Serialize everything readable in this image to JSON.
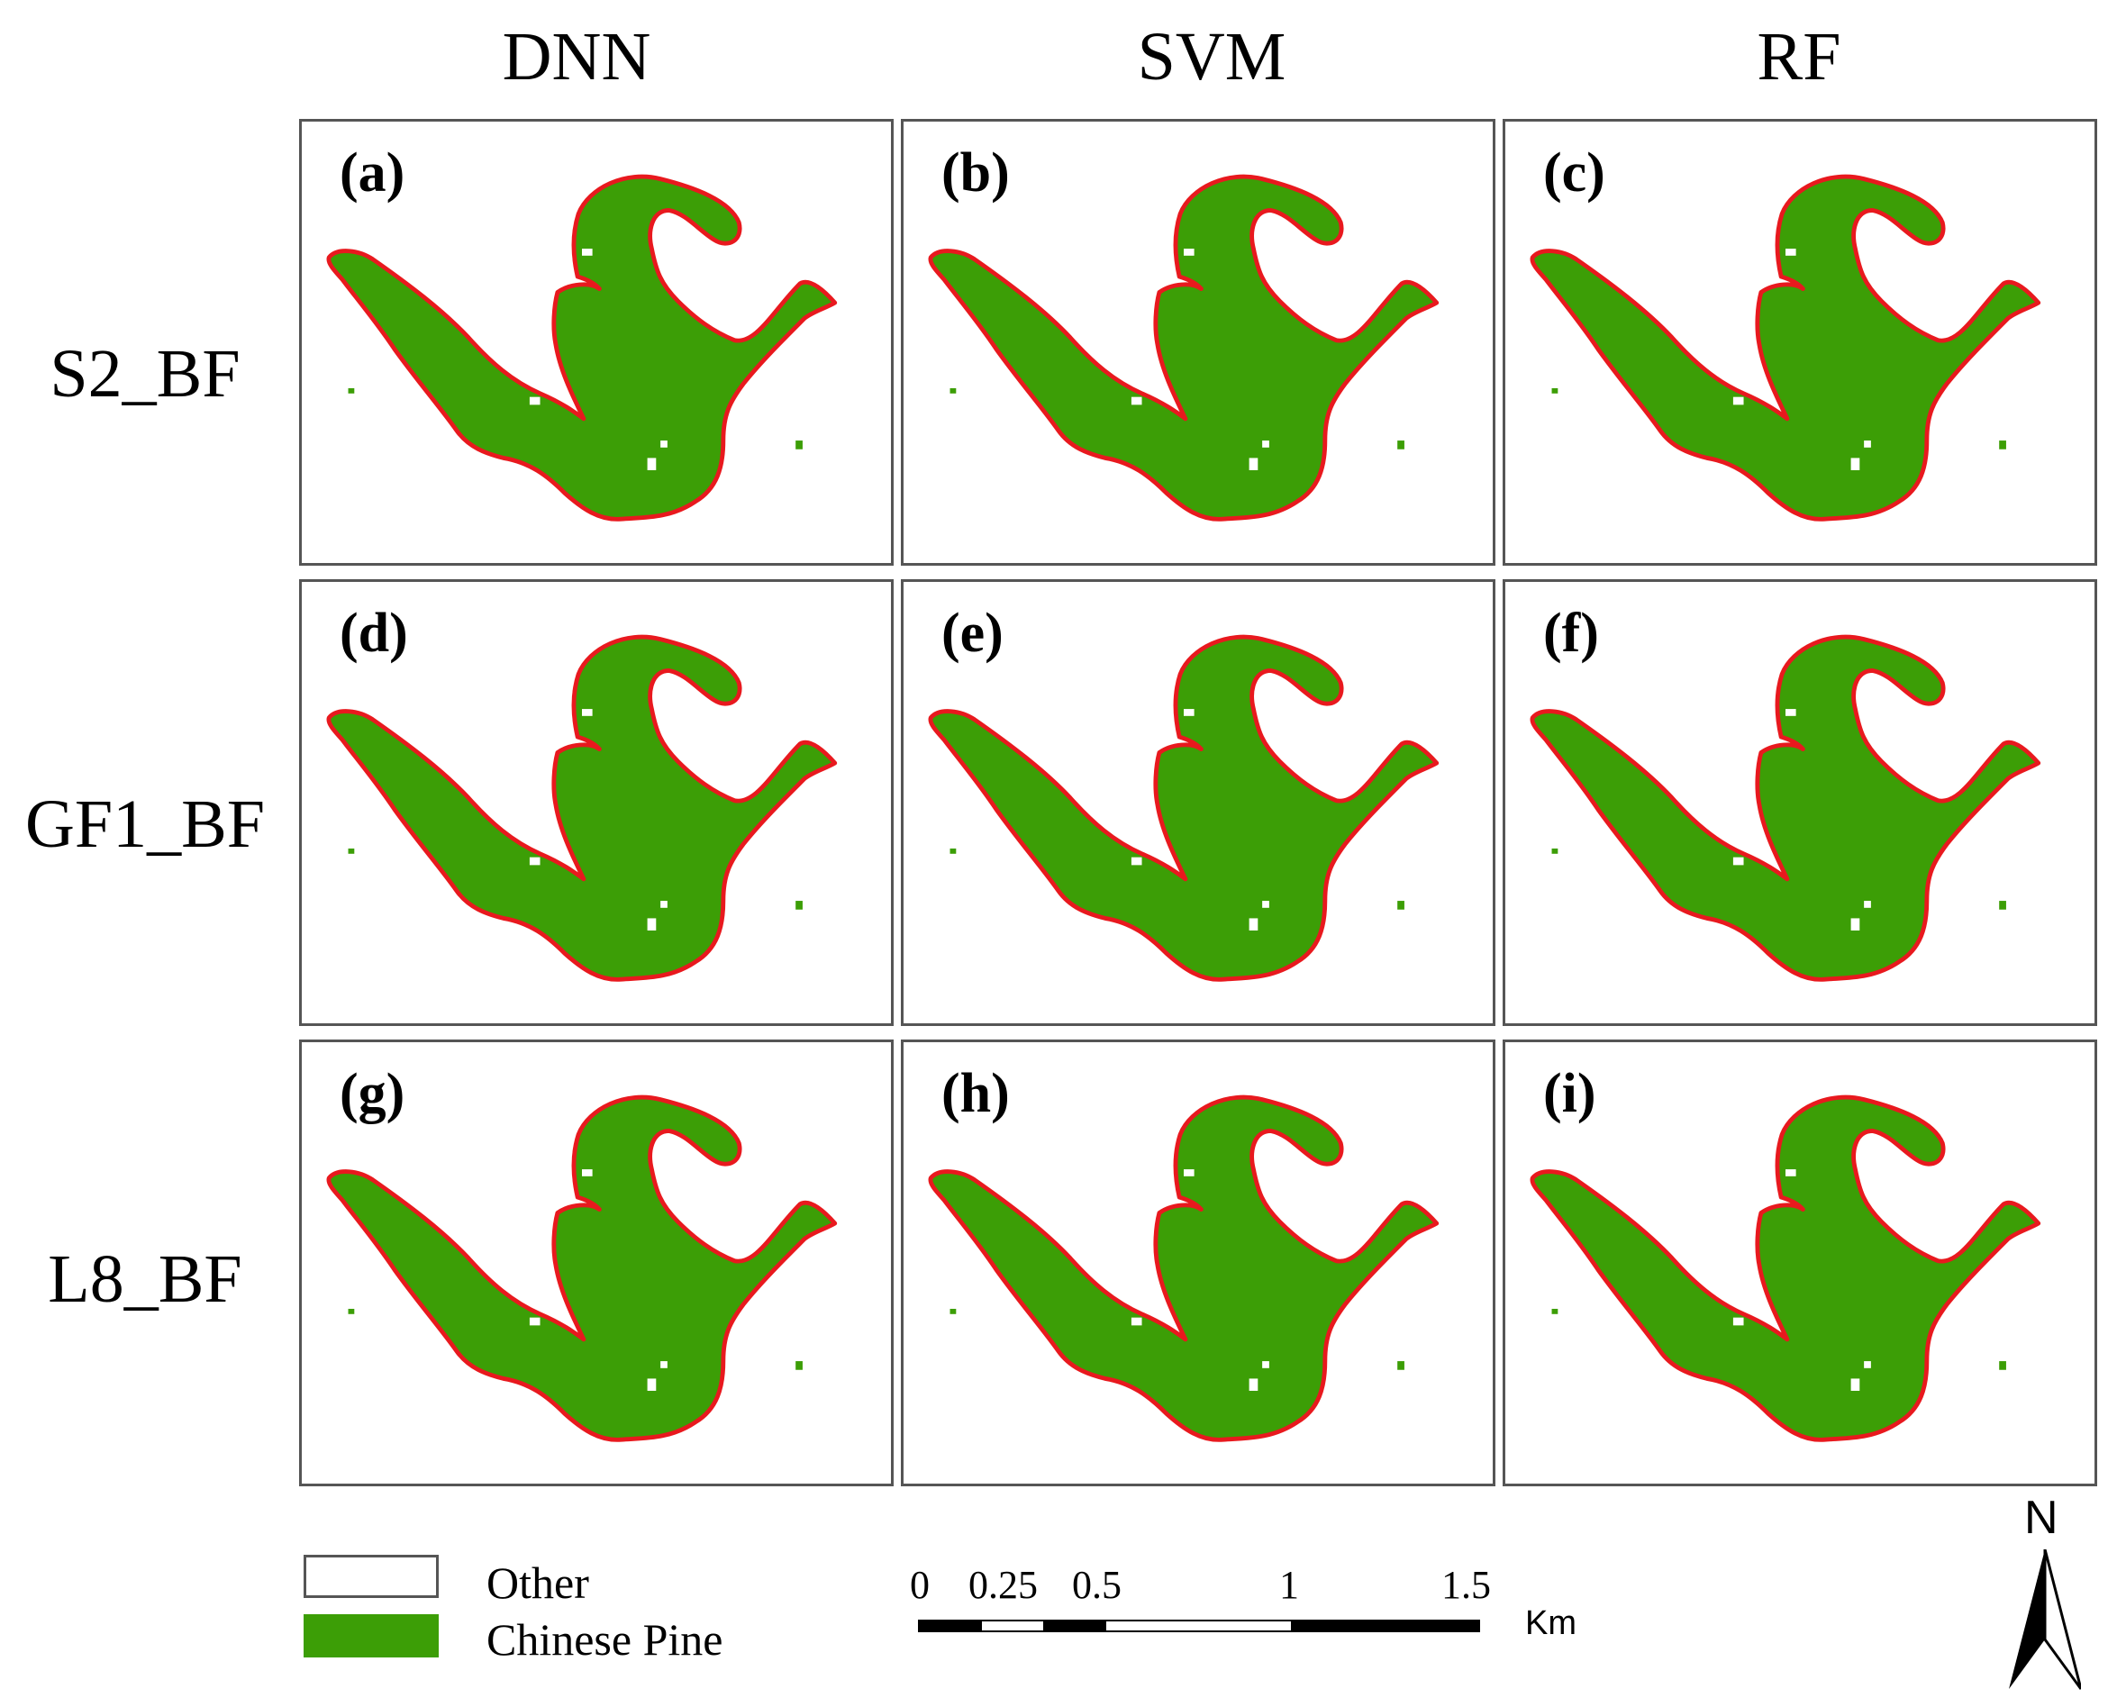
{
  "columns": [
    "DNN",
    "SVM",
    "RF"
  ],
  "rows": [
    "S2_BF",
    "GF1_BF",
    "L8_BF"
  ],
  "panels": [
    {
      "label": "(a)",
      "model": "DNN",
      "source": "S2_BF"
    },
    {
      "label": "(b)",
      "model": "SVM",
      "source": "S2_BF"
    },
    {
      "label": "(c)",
      "model": "RF",
      "source": "S2_BF"
    },
    {
      "label": "(d)",
      "model": "DNN",
      "source": "GF1_BF"
    },
    {
      "label": "(e)",
      "model": "SVM",
      "source": "GF1_BF"
    },
    {
      "label": "(f)",
      "model": "RF",
      "source": "GF1_BF"
    },
    {
      "label": "(g)",
      "model": "DNN",
      "source": "L8_BF"
    },
    {
      "label": "(h)",
      "model": "SVM",
      "source": "L8_BF"
    },
    {
      "label": "(i)",
      "model": "RF",
      "source": "L8_BF"
    }
  ],
  "legend": [
    {
      "label": "Other",
      "color": "#ffffff"
    },
    {
      "label": "Chinese Pine",
      "color": "#3c9e06"
    }
  ],
  "boundary_color": "#e8191e",
  "scale_bar": {
    "ticks": [
      "0",
      "0.25",
      "0.5",
      "1",
      "1.5"
    ],
    "unit": "Km"
  },
  "north_arrow": {
    "label": "N"
  }
}
